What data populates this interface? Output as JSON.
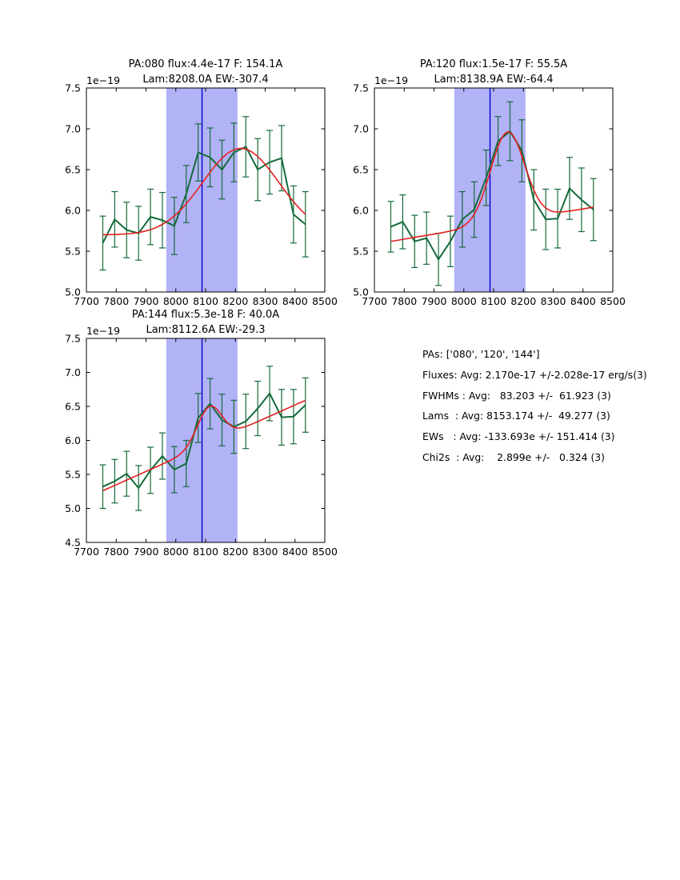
{
  "palette": {
    "data_green": "#146b3a",
    "fit_red": "#e62020",
    "band_blue": "#b2b2f7",
    "vline_blue": "#0000cc",
    "axes_black": "#000000",
    "background": "#ffffff"
  },
  "stats_panel": {
    "lines": [
      "PAs: ['080', '120', '144']",
      "Fluxes: Avg: 2.170e-17 +/-2.028e-17 erg/s(3)",
      "FWHMs : Avg:   83.203 +/-  61.923 (3)",
      "Lams  : Avg: 8153.174 +/-  49.277 (3)",
      "EWs   : Avg: -133.693e +/- 151.414 (3)",
      "Chi2s  : Avg:    2.899e +/-   0.324 (3)"
    ]
  },
  "chart_data": [
    {
      "type": "line",
      "title_line1": "PA:080 flux:4.4e-17 F: 154.1A",
      "title_line2": "Lam:8208.0A EW:-307.4",
      "offset_label": "1e−19",
      "xlim": [
        7700,
        8500
      ],
      "ylim": [
        5.0,
        7.5
      ],
      "xticks": [
        7700,
        7800,
        7900,
        8000,
        8100,
        8200,
        8300,
        8400,
        8500
      ],
      "xtick_labels": [
        "7700",
        "7800",
        "7900",
        "8000",
        "8100",
        "8200",
        "8300",
        "8400",
        "8500"
      ],
      "yticks": [
        5.0,
        5.5,
        6.0,
        6.5,
        7.0,
        7.5
      ],
      "ytick_labels": [
        "5.0",
        "5.5",
        "6.0",
        "6.5",
        "7.0",
        "7.5"
      ],
      "band": [
        7968,
        8207
      ],
      "vline": 8088,
      "x": [
        7755,
        7795,
        7835,
        7875,
        7915,
        7955,
        7995,
        8035,
        8075,
        8115,
        8155,
        8195,
        8235,
        8275,
        8315,
        8355,
        8395,
        8435
      ],
      "y": [
        5.6,
        5.89,
        5.76,
        5.72,
        5.92,
        5.88,
        5.81,
        6.2,
        6.71,
        6.65,
        6.5,
        6.71,
        6.78,
        6.5,
        6.59,
        6.64,
        5.95,
        5.83
      ],
      "yerr": [
        0.33,
        0.34,
        0.34,
        0.33,
        0.34,
        0.34,
        0.35,
        0.35,
        0.35,
        0.36,
        0.36,
        0.36,
        0.37,
        0.38,
        0.39,
        0.4,
        0.35,
        0.4
      ],
      "fit": {
        "b0": 5.7,
        "b1_per_A": 0.0,
        "amp": 1.06,
        "mu": 8218,
        "sigma": 128
      }
    },
    {
      "type": "line",
      "title_line1": "PA:120 flux:1.5e-17 F: 55.5A",
      "title_line2": "Lam:8138.9A EW:-64.4",
      "offset_label": "1e−19",
      "xlim": [
        7700,
        8500
      ],
      "ylim": [
        5.0,
        7.5
      ],
      "xticks": [
        7700,
        7800,
        7900,
        8000,
        8100,
        8200,
        8300,
        8400,
        8500
      ],
      "xtick_labels": [
        "7700",
        "7800",
        "7900",
        "8000",
        "8100",
        "8200",
        "8300",
        "8400",
        "8500"
      ],
      "yticks": [
        5.0,
        5.5,
        6.0,
        6.5,
        7.0,
        7.5
      ],
      "ytick_labels": [
        "5.0",
        "5.5",
        "6.0",
        "6.5",
        "7.0",
        "7.5"
      ],
      "band": [
        7968,
        8207
      ],
      "vline": 8088,
      "x": [
        7755,
        7795,
        7835,
        7875,
        7915,
        7955,
        7995,
        8035,
        8075,
        8115,
        8155,
        8195,
        8235,
        8275,
        8315,
        8355,
        8395,
        8435
      ],
      "y": [
        5.8,
        5.86,
        5.62,
        5.66,
        5.4,
        5.62,
        5.89,
        6.01,
        6.4,
        6.85,
        6.97,
        6.73,
        6.13,
        5.89,
        5.9,
        6.27,
        6.13,
        6.01
      ],
      "yerr": [
        0.31,
        0.33,
        0.32,
        0.32,
        0.32,
        0.31,
        0.34,
        0.34,
        0.34,
        0.3,
        0.36,
        0.38,
        0.37,
        0.37,
        0.36,
        0.38,
        0.39,
        0.38
      ],
      "fit": {
        "b0": 5.586,
        "b1_per_A": 0.000618,
        "amp": 1.1,
        "mu": 8147,
        "sigma": 57
      }
    },
    {
      "type": "line",
      "title_line1": "PA:144 flux:5.3e-18 F: 40.0A",
      "title_line2": "Lam:8112.6A EW:-29.3",
      "offset_label": "1e−19",
      "xlim": [
        7700,
        8500
      ],
      "ylim": [
        4.5,
        7.5
      ],
      "xticks": [
        7700,
        7800,
        7900,
        8000,
        8100,
        8200,
        8300,
        8400,
        8500
      ],
      "xtick_labels": [
        "7700",
        "7800",
        "7900",
        "8000",
        "8100",
        "8200",
        "8300",
        "8400",
        "8500"
      ],
      "yticks": [
        4.5,
        5.0,
        5.5,
        6.0,
        6.5,
        7.0,
        7.5
      ],
      "ytick_labels": [
        "4.5",
        "5.0",
        "5.5",
        "6.0",
        "6.5",
        "7.0",
        "7.5"
      ],
      "band": [
        7968,
        8207
      ],
      "vline": 8088,
      "x": [
        7755,
        7795,
        7835,
        7875,
        7915,
        7955,
        7995,
        8035,
        8075,
        8115,
        8155,
        8195,
        8235,
        8275,
        8315,
        8355,
        8395,
        8435
      ],
      "y": [
        5.32,
        5.4,
        5.51,
        5.3,
        5.56,
        5.77,
        5.57,
        5.66,
        6.33,
        6.54,
        6.3,
        6.2,
        6.28,
        6.47,
        6.69,
        6.34,
        6.35,
        6.52
      ],
      "yerr": [
        0.32,
        0.32,
        0.33,
        0.33,
        0.34,
        0.34,
        0.34,
        0.34,
        0.36,
        0.37,
        0.38,
        0.39,
        0.4,
        0.4,
        0.4,
        0.41,
        0.4,
        0.4
      ],
      "fit": {
        "b0": 5.152,
        "b1_per_A": 0.001956,
        "amp": 0.54,
        "mu": 8113,
        "sigma": 41
      }
    }
  ]
}
